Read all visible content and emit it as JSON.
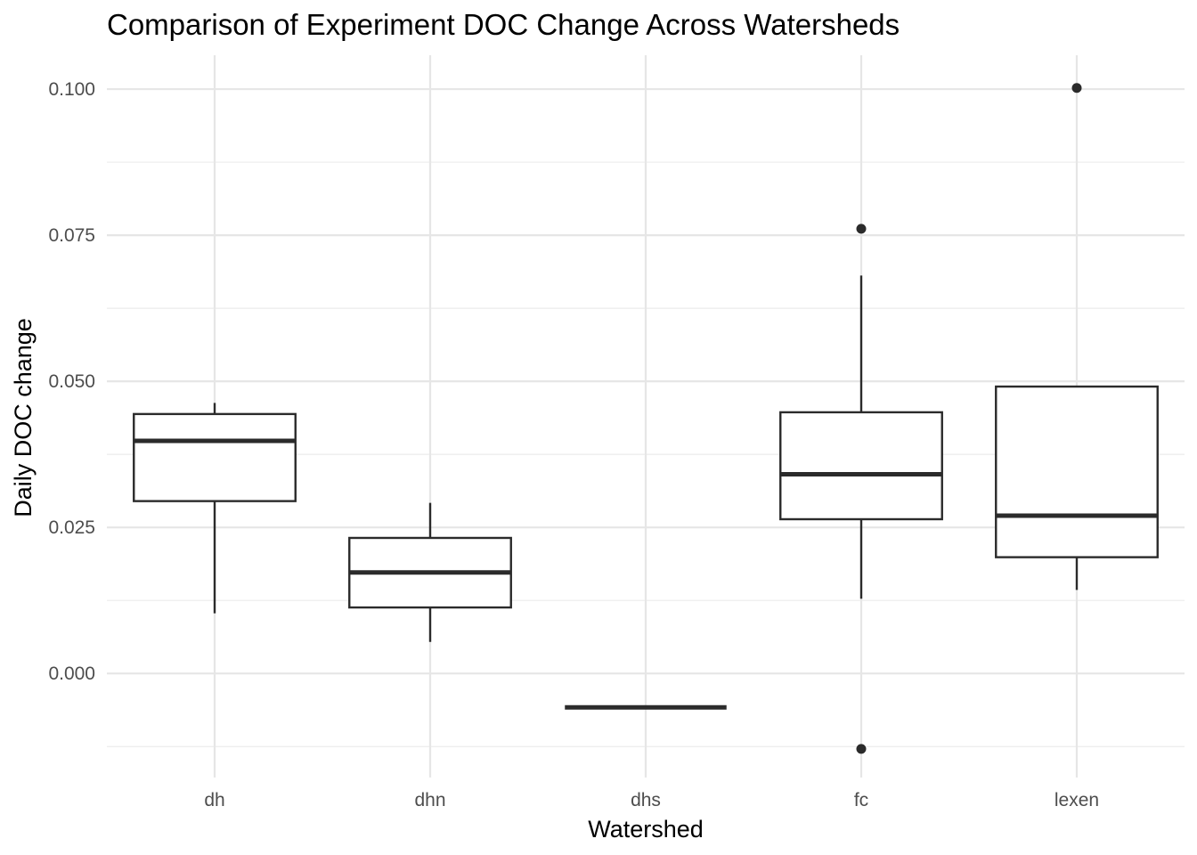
{
  "chart_data": {
    "type": "boxplot",
    "title": "Comparison of Experiment DOC Change Across Watersheds",
    "xlabel": "Watershed",
    "ylabel": "Daily DOC change",
    "ylim": [
      -0.0178,
      0.1058
    ],
    "yticks": [
      0.0,
      0.025,
      0.05,
      0.075,
      0.1
    ],
    "ytick_labels": [
      "0.000",
      "0.025",
      "0.050",
      "0.075",
      "0.100"
    ],
    "grid": true,
    "legend": "none",
    "categories": [
      "dh",
      "dhn",
      "dhs",
      "fc",
      "lexen"
    ],
    "boxes": [
      {
        "category": "dh",
        "whisker_low": 0.0103,
        "q1": 0.0295,
        "median": 0.0398,
        "q3": 0.0444,
        "whisker_high": 0.0463,
        "outliers": []
      },
      {
        "category": "dhn",
        "whisker_low": 0.0054,
        "q1": 0.0113,
        "median": 0.0173,
        "q3": 0.0232,
        "whisker_high": 0.0292,
        "outliers": []
      },
      {
        "category": "dhs",
        "whisker_low": -0.0058,
        "q1": -0.0058,
        "median": -0.0058,
        "q3": -0.0058,
        "whisker_high": -0.0058,
        "outliers": []
      },
      {
        "category": "fc",
        "whisker_low": 0.0128,
        "q1": 0.0264,
        "median": 0.0341,
        "q3": 0.0447,
        "whisker_high": 0.0681,
        "outliers": [
          0.0761,
          -0.0129
        ]
      },
      {
        "category": "lexen",
        "whisker_low": 0.0143,
        "q1": 0.0199,
        "median": 0.027,
        "q3": 0.0491,
        "whisker_high": 0.0491,
        "outliers": [
          0.1002
        ]
      }
    ]
  }
}
